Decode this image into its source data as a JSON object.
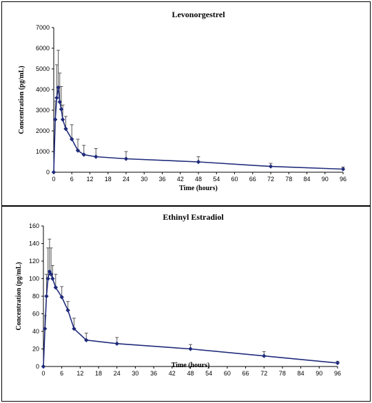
{
  "chart_data": [
    {
      "type": "line",
      "title": "Levonorgestrel",
      "xlabel": "Time (hours)",
      "ylabel": "Concentration (pg/mL)",
      "xlim": [
        0,
        96
      ],
      "ylim": [
        0,
        7000
      ],
      "xticks": [
        "0",
        "6",
        "12",
        "18",
        "24",
        "30",
        "36",
        "42",
        "48",
        "54",
        "60",
        "66",
        "72",
        "78",
        "84",
        "90",
        "96"
      ],
      "yticks": [
        "0",
        "1000",
        "2000",
        "3000",
        "4000",
        "5000",
        "6000",
        "7000"
      ],
      "grid": false,
      "color": "#1f2a7a",
      "series": [
        {
          "x": [
            0,
            0.5,
            1,
            1.5,
            2,
            2.5,
            3,
            4,
            6,
            8,
            10,
            14,
            24,
            48,
            72,
            96
          ],
          "values": [
            0,
            2550,
            3600,
            4100,
            3400,
            3050,
            2550,
            2100,
            1600,
            1050,
            850,
            750,
            650,
            500,
            280,
            150
          ],
          "errors": [
            0,
            900,
            1600,
            1800,
            1400,
            1100,
            700,
            600,
            700,
            550,
            450,
            400,
            350,
            250,
            150,
            100
          ]
        }
      ]
    },
    {
      "type": "line",
      "title": "Ethinyl Estradiol",
      "xlabel": "Time (hours)",
      "ylabel": "Concentration (pg/mL)",
      "xlim": [
        0,
        96
      ],
      "ylim": [
        0,
        160
      ],
      "xticks": [
        "0",
        "6",
        "12",
        "18",
        "24",
        "30",
        "36",
        "42",
        "48",
        "54",
        "60",
        "66",
        "72",
        "78",
        "84",
        "90",
        "96"
      ],
      "yticks": [
        "0",
        "20",
        "40",
        "60",
        "80",
        "100",
        "120",
        "140",
        "160"
      ],
      "grid": false,
      "color": "#1f2a7a",
      "series": [
        {
          "x": [
            0,
            0.5,
            1,
            1.5,
            2,
            2.5,
            3,
            4,
            6,
            8,
            10,
            14,
            24,
            48,
            72,
            96
          ],
          "values": [
            0,
            43,
            80,
            100,
            108,
            105,
            100,
            90,
            79,
            64,
            43,
            30,
            26,
            20,
            12,
            4
          ],
          "errors": [
            0,
            15,
            25,
            35,
            37,
            30,
            15,
            15,
            12,
            10,
            12,
            8,
            7,
            5,
            5,
            2
          ]
        }
      ]
    }
  ]
}
